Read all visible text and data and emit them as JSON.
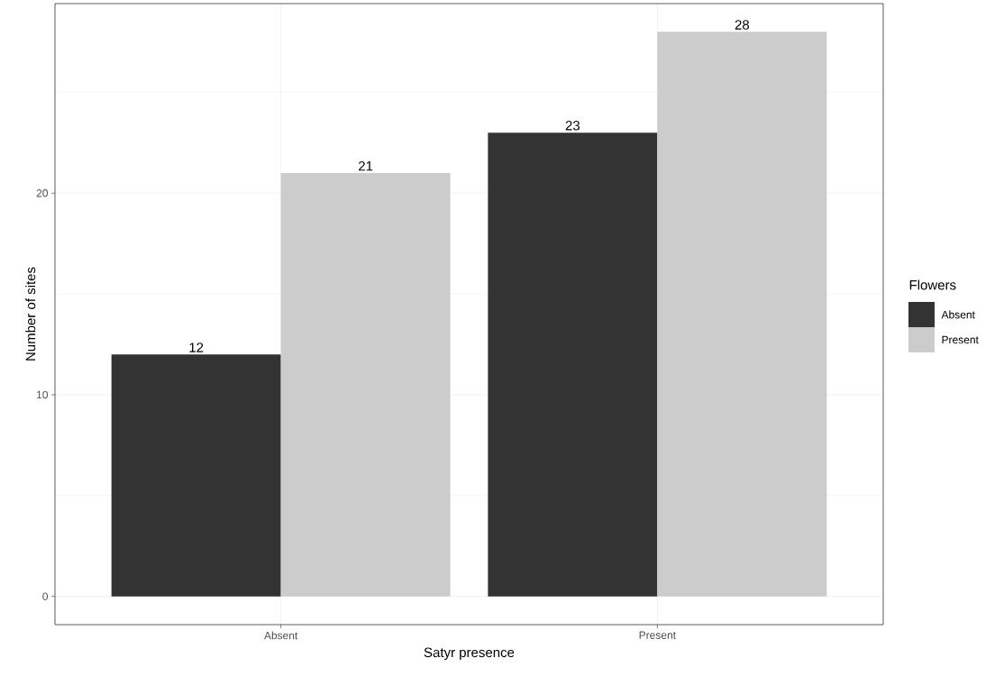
{
  "chart_data": {
    "type": "bar",
    "xlabel": "Satyr presence",
    "ylabel": "Number of sites",
    "legend_title": "Flowers",
    "categories": [
      "Absent",
      "Present"
    ],
    "series": [
      {
        "name": "Absent",
        "color": "#333333",
        "values": [
          12,
          23
        ]
      },
      {
        "name": "Present",
        "color": "#cccccc",
        "values": [
          21,
          28
        ]
      }
    ],
    "ylim": [
      -1.4,
      29.4
    ],
    "yticks": [
      0,
      {
        "value": 5,
        "label": null
      },
      10,
      {
        "value": 15,
        "label": null
      },
      20,
      {
        "value": 25,
        "label": null
      }
    ],
    "grid": true,
    "legend": "right",
    "data_labels": true
  }
}
